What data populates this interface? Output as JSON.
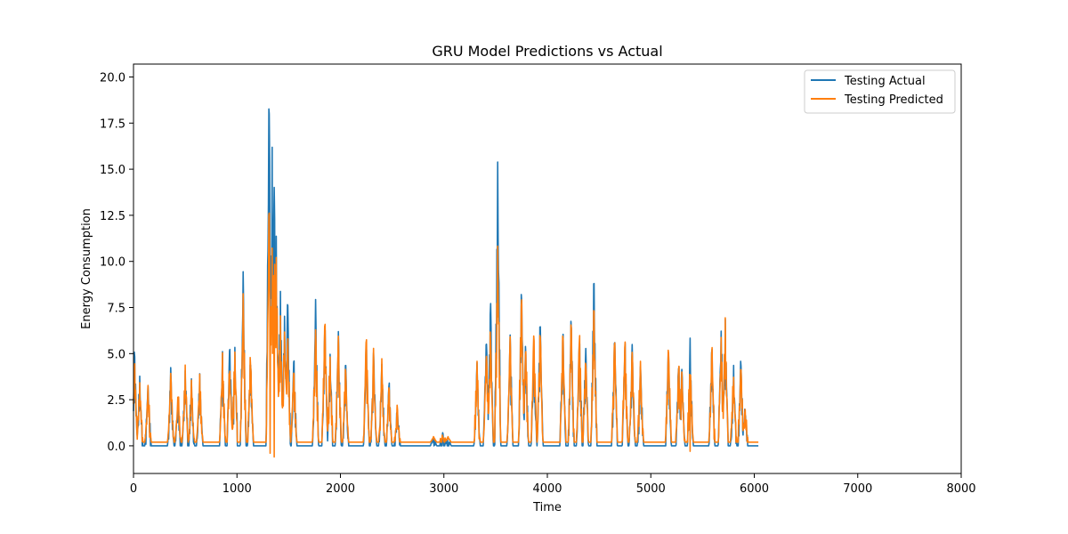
{
  "chart_data": {
    "type": "line",
    "title": "GRU Model Predictions vs Actual",
    "xlabel": "Time",
    "ylabel": "Energy Consumption",
    "xlim": [
      0,
      8000
    ],
    "ylim": [
      -1.5,
      20.7
    ],
    "xticks": [
      0,
      1000,
      2000,
      3000,
      4000,
      5000,
      6000,
      7000,
      8000
    ],
    "yticks": [
      0.0,
      2.5,
      5.0,
      7.5,
      10.0,
      12.5,
      15.0,
      17.5,
      20.0
    ],
    "xtick_labels": [
      "0",
      "1000",
      "2000",
      "3000",
      "4000",
      "5000",
      "6000",
      "7000",
      "8000"
    ],
    "ytick_labels": [
      "0.0",
      "2.5",
      "5.0",
      "7.5",
      "10.0",
      "12.5",
      "15.0",
      "17.5",
      "20.0"
    ],
    "grid": false,
    "legend_position": "top-right",
    "series": [
      {
        "name": "Testing Actual",
        "color": "#1f77b4",
        "baseline": 0.0,
        "spikes": [
          [
            10,
            5.5
          ],
          [
            60,
            4.0
          ],
          [
            140,
            3.8
          ],
          [
            360,
            4.6
          ],
          [
            430,
            3.2
          ],
          [
            500,
            4.8
          ],
          [
            560,
            3.8
          ],
          [
            640,
            4.3
          ],
          [
            860,
            5.2
          ],
          [
            930,
            6.1
          ],
          [
            980,
            5.6
          ],
          [
            1060,
            9.8
          ],
          [
            1130,
            5.3
          ],
          [
            1310,
            19.7
          ],
          [
            1340,
            16.3
          ],
          [
            1360,
            14.7
          ],
          [
            1380,
            11.6
          ],
          [
            1420,
            8.6
          ],
          [
            1460,
            7.3
          ],
          [
            1490,
            8.4
          ],
          [
            1550,
            5.0
          ],
          [
            1760,
            8.0
          ],
          [
            1850,
            7.0
          ],
          [
            1900,
            5.2
          ],
          [
            1980,
            6.4
          ],
          [
            2050,
            4.7
          ],
          [
            2250,
            6.4
          ],
          [
            2320,
            5.2
          ],
          [
            2400,
            4.5
          ],
          [
            2470,
            4.0
          ],
          [
            2550,
            2.4
          ],
          [
            2900,
            0.6
          ],
          [
            2990,
            1.1
          ],
          [
            3040,
            0.6
          ],
          [
            3320,
            5.1
          ],
          [
            3410,
            6.7
          ],
          [
            3450,
            8.3
          ],
          [
            3520,
            15.8
          ],
          [
            3640,
            6.5
          ],
          [
            3750,
            9.0
          ],
          [
            3790,
            6.0
          ],
          [
            3870,
            5.9
          ],
          [
            3930,
            7.0
          ],
          [
            4150,
            6.5
          ],
          [
            4230,
            7.3
          ],
          [
            4310,
            6.5
          ],
          [
            4370,
            5.7
          ],
          [
            4450,
            9.5
          ],
          [
            4650,
            6.2
          ],
          [
            4750,
            6.1
          ],
          [
            4820,
            5.6
          ],
          [
            4900,
            5.0
          ],
          [
            5170,
            5.8
          ],
          [
            5270,
            5.0
          ],
          [
            5300,
            4.6
          ],
          [
            5380,
            5.9
          ],
          [
            5590,
            5.8
          ],
          [
            5680,
            7.0
          ],
          [
            5720,
            7.2
          ],
          [
            5800,
            4.4
          ],
          [
            5870,
            5.0
          ],
          [
            5910,
            2.6
          ]
        ],
        "end_x": 6040
      },
      {
        "name": "Testing Predicted",
        "color": "#ff7f0e",
        "baseline": 0.2,
        "spikes": [
          [
            10,
            4.8
          ],
          [
            60,
            4.0
          ],
          [
            140,
            3.6
          ],
          [
            360,
            4.6
          ],
          [
            430,
            3.3
          ],
          [
            500,
            4.9
          ],
          [
            560,
            3.8
          ],
          [
            640,
            4.3
          ],
          [
            860,
            5.3
          ],
          [
            930,
            4.9
          ],
          [
            980,
            5.6
          ],
          [
            1060,
            8.3
          ],
          [
            1130,
            5.3
          ],
          [
            1310,
            13.8
          ],
          [
            1340,
            11.1
          ],
          [
            1360,
            11.5
          ],
          [
            1380,
            10.9
          ],
          [
            1420,
            7.6
          ],
          [
            1460,
            6.8
          ],
          [
            1490,
            6.4
          ],
          [
            1550,
            4.8
          ],
          [
            1760,
            6.7
          ],
          [
            1850,
            7.1
          ],
          [
            1900,
            5.1
          ],
          [
            1980,
            6.5
          ],
          [
            2050,
            4.7
          ],
          [
            2250,
            6.5
          ],
          [
            2320,
            5.3
          ],
          [
            2400,
            4.9
          ],
          [
            2470,
            3.9
          ],
          [
            2550,
            2.4
          ],
          [
            2900,
            0.5
          ],
          [
            2990,
            1.1
          ],
          [
            3040,
            0.5
          ],
          [
            3320,
            5.0
          ],
          [
            3410,
            5.7
          ],
          [
            3450,
            6.6
          ],
          [
            3520,
            11.6
          ],
          [
            3640,
            6.6
          ],
          [
            3750,
            8.8
          ],
          [
            3790,
            6.1
          ],
          [
            3870,
            6.7
          ],
          [
            3930,
            7.0
          ],
          [
            4150,
            6.5
          ],
          [
            4230,
            7.4
          ],
          [
            4310,
            6.5
          ],
          [
            4370,
            5.3
          ],
          [
            4450,
            8.0
          ],
          [
            4650,
            6.3
          ],
          [
            4750,
            6.2
          ],
          [
            4820,
            5.8
          ],
          [
            4900,
            5.0
          ],
          [
            5170,
            5.8
          ],
          [
            5270,
            5.0
          ],
          [
            5300,
            4.3
          ],
          [
            5380,
            5.5
          ],
          [
            5590,
            5.8
          ],
          [
            5680,
            6.5
          ],
          [
            5720,
            7.0
          ],
          [
            5800,
            4.5
          ],
          [
            5870,
            4.8
          ],
          [
            5910,
            2.5
          ]
        ],
        "dips": [
          [
            1320,
            -0.4
          ],
          [
            1360,
            -0.6
          ],
          [
            5380,
            -0.3
          ]
        ],
        "end_x": 6040
      }
    ]
  }
}
